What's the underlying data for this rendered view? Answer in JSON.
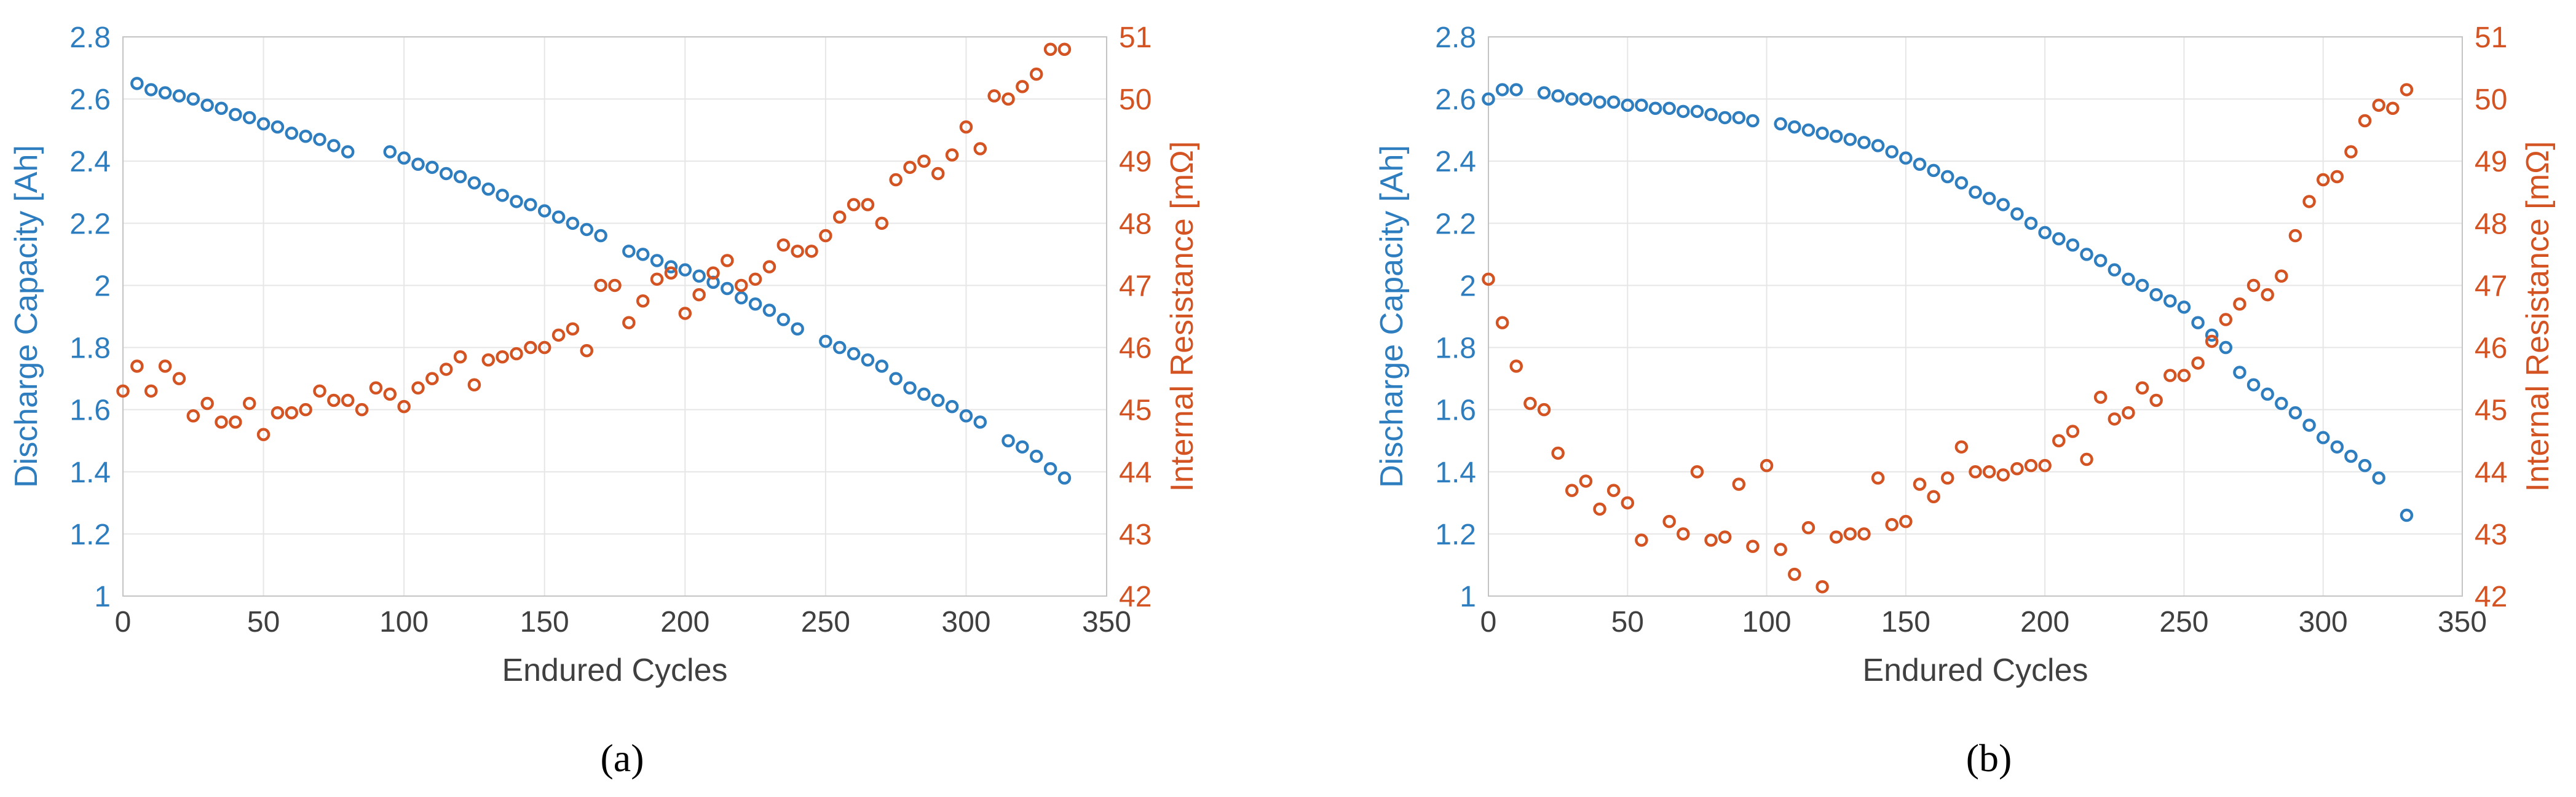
{
  "colors": {
    "capacity": "#2E7EBF",
    "resistance": "#D35422",
    "axis_text": "#404040"
  },
  "captions": [
    "(a)",
    "(b)"
  ],
  "chart_data": [
    {
      "type": "scatter",
      "panel": "(a)",
      "xlabel": "Endured Cycles",
      "ylabel_left": "Discharge Capacity [Ah]",
      "ylabel_right": "Internal Resistance [mΩ]",
      "xlim": [
        0,
        350
      ],
      "ylim_left": [
        1,
        2.8
      ],
      "ylim_right": [
        42,
        51
      ],
      "xticks": [
        "0",
        "50",
        "100",
        "150",
        "200",
        "250",
        "300",
        "350"
      ],
      "yticks_left": [
        "1",
        "1.2",
        "1.4",
        "1.6",
        "1.8",
        "2",
        "2.2",
        "2.4",
        "2.6",
        "2.8"
      ],
      "yticks_right": [
        "42",
        "43",
        "44",
        "45",
        "46",
        "47",
        "48",
        "49",
        "50",
        "51"
      ],
      "grid": true,
      "series": [
        {
          "name": "Discharge Capacity",
          "axis": "left",
          "x": [
            5,
            10,
            15,
            20,
            25,
            30,
            35,
            40,
            45,
            50,
            55,
            60,
            65,
            70,
            75,
            80,
            95,
            100,
            105,
            110,
            115,
            120,
            125,
            130,
            135,
            140,
            145,
            150,
            155,
            160,
            165,
            170,
            180,
            185,
            190,
            195,
            200,
            205,
            210,
            215,
            220,
            225,
            230,
            235,
            240,
            250,
            255,
            260,
            265,
            270,
            275,
            280,
            285,
            290,
            295,
            300,
            305,
            315,
            320,
            325,
            330,
            335
          ],
          "y": [
            2.65,
            2.63,
            2.62,
            2.61,
            2.6,
            2.58,
            2.57,
            2.55,
            2.54,
            2.52,
            2.51,
            2.49,
            2.48,
            2.47,
            2.45,
            2.43,
            2.43,
            2.41,
            2.39,
            2.38,
            2.36,
            2.35,
            2.33,
            2.31,
            2.29,
            2.27,
            2.26,
            2.24,
            2.22,
            2.2,
            2.18,
            2.16,
            2.11,
            2.1,
            2.08,
            2.06,
            2.05,
            2.03,
            2.01,
            1.99,
            1.96,
            1.94,
            1.92,
            1.89,
            1.86,
            1.82,
            1.8,
            1.78,
            1.76,
            1.74,
            1.7,
            1.67,
            1.65,
            1.63,
            1.61,
            1.58,
            1.56,
            1.5,
            1.48,
            1.45,
            1.41,
            1.38
          ]
        },
        {
          "name": "Internal Resistance",
          "axis": "right",
          "x": [
            0,
            5,
            10,
            15,
            20,
            25,
            30,
            35,
            40,
            45,
            50,
            55,
            60,
            65,
            70,
            75,
            80,
            85,
            90,
            95,
            100,
            105,
            110,
            115,
            120,
            125,
            130,
            135,
            140,
            145,
            150,
            155,
            160,
            165,
            170,
            175,
            180,
            185,
            190,
            195,
            200,
            205,
            210,
            215,
            220,
            225,
            230,
            235,
            240,
            245,
            250,
            255,
            260,
            265,
            270,
            275,
            280,
            285,
            290,
            295,
            300,
            305,
            310,
            315,
            320,
            325,
            330,
            335
          ],
          "y": [
            45.3,
            45.7,
            45.3,
            45.7,
            45.5,
            44.9,
            45.1,
            44.8,
            44.8,
            45.1,
            44.6,
            44.95,
            44.95,
            45,
            45.3,
            45.15,
            45.15,
            45,
            45.35,
            45.25,
            45.05,
            45.35,
            45.5,
            45.65,
            45.85,
            45.4,
            45.8,
            45.85,
            45.9,
            46,
            46,
            46.2,
            46.3,
            45.95,
            47,
            47,
            46.4,
            46.75,
            47.1,
            47.2,
            46.55,
            46.85,
            47.2,
            47.4,
            47,
            47.1,
            47.3,
            47.65,
            47.55,
            47.55,
            47.8,
            48.1,
            48.3,
            48.3,
            48,
            48.7,
            48.9,
            49,
            48.8,
            49.1,
            49.55,
            49.2,
            50.05,
            50,
            50.2,
            50.4,
            50.8,
            50.8
          ]
        }
      ]
    },
    {
      "type": "scatter",
      "panel": "(b)",
      "xlabel": "Endured Cycles",
      "ylabel_left": "Discharge Capacity [Ah]",
      "ylabel_right": "Internal Resistance [mΩ]",
      "xlim": [
        0,
        350
      ],
      "ylim_left": [
        1,
        2.8
      ],
      "ylim_right": [
        42,
        51
      ],
      "xticks": [
        "0",
        "50",
        "100",
        "150",
        "200",
        "250",
        "300",
        "350"
      ],
      "yticks_left": [
        "1",
        "1.2",
        "1.4",
        "1.6",
        "1.8",
        "2",
        "2.2",
        "2.4",
        "2.6",
        "2.8"
      ],
      "yticks_right": [
        "42",
        "43",
        "44",
        "45",
        "46",
        "47",
        "48",
        "49",
        "50",
        "51"
      ],
      "grid": true,
      "series": [
        {
          "name": "Discharge Capacity",
          "axis": "left",
          "x": [
            0,
            5,
            10,
            20,
            25,
            30,
            35,
            40,
            45,
            50,
            55,
            60,
            65,
            70,
            75,
            80,
            85,
            90,
            95,
            105,
            110,
            115,
            120,
            125,
            130,
            135,
            140,
            145,
            150,
            155,
            160,
            165,
            170,
            175,
            180,
            185,
            190,
            195,
            200,
            205,
            210,
            215,
            220,
            225,
            230,
            235,
            240,
            245,
            250,
            255,
            260,
            265,
            270,
            275,
            280,
            285,
            290,
            295,
            300,
            305,
            310,
            315,
            320,
            330
          ],
          "y": [
            2.6,
            2.63,
            2.63,
            2.62,
            2.61,
            2.6,
            2.6,
            2.59,
            2.59,
            2.58,
            2.58,
            2.57,
            2.57,
            2.56,
            2.56,
            2.55,
            2.54,
            2.54,
            2.53,
            2.52,
            2.51,
            2.5,
            2.49,
            2.48,
            2.47,
            2.46,
            2.45,
            2.43,
            2.41,
            2.39,
            2.37,
            2.35,
            2.33,
            2.3,
            2.28,
            2.26,
            2.23,
            2.2,
            2.17,
            2.15,
            2.13,
            2.1,
            2.08,
            2.05,
            2.02,
            2,
            1.97,
            1.95,
            1.93,
            1.88,
            1.84,
            1.8,
            1.72,
            1.68,
            1.65,
            1.62,
            1.59,
            1.55,
            1.51,
            1.48,
            1.45,
            1.42,
            1.38,
            1.26
          ]
        },
        {
          "name": "Internal Resistance",
          "axis": "right",
          "x": [
            0,
            5,
            10,
            15,
            20,
            25,
            30,
            35,
            40,
            45,
            50,
            55,
            65,
            70,
            75,
            80,
            85,
            90,
            95,
            100,
            105,
            110,
            115,
            120,
            125,
            130,
            135,
            140,
            145,
            150,
            155,
            160,
            165,
            170,
            175,
            180,
            185,
            190,
            195,
            200,
            205,
            210,
            215,
            220,
            225,
            230,
            235,
            240,
            245,
            250,
            255,
            260,
            265,
            270,
            275,
            280,
            285,
            290,
            295,
            300,
            305,
            310,
            315,
            320,
            325,
            330
          ],
          "y": [
            47.1,
            46.4,
            45.7,
            45.1,
            45,
            44.3,
            43.7,
            43.85,
            43.4,
            43.7,
            43.5,
            42.9,
            43.2,
            43,
            44,
            42.9,
            42.95,
            43.8,
            42.8,
            44.1,
            42.75,
            42.35,
            43.1,
            42.15,
            42.95,
            43,
            43,
            43.9,
            43.15,
            43.2,
            43.8,
            43.6,
            43.9,
            44.4,
            44,
            44,
            43.95,
            44.05,
            44.1,
            44.1,
            44.5,
            44.65,
            44.2,
            45.2,
            44.85,
            44.95,
            45.35,
            45.15,
            45.55,
            45.55,
            45.75,
            46.1,
            46.45,
            46.7,
            47,
            46.85,
            47.15,
            47.8,
            48.35,
            48.7,
            48.75,
            49.15,
            49.65,
            49.9,
            49.85,
            50.15
          ]
        }
      ]
    }
  ]
}
